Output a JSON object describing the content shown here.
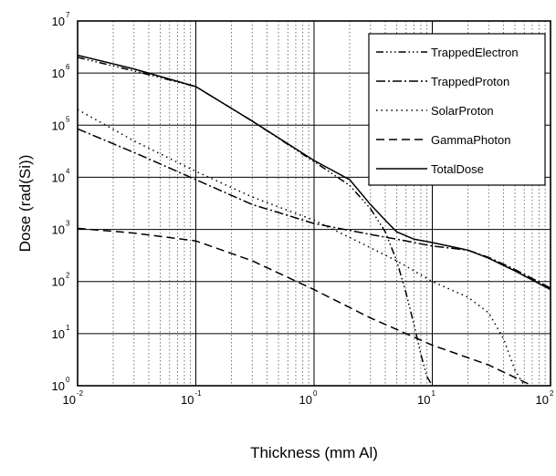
{
  "chart_data": {
    "type": "line",
    "xlabel": "Thickness (mm Al)",
    "ylabel": "Dose (rad(Si))",
    "xscale": "log",
    "yscale": "log",
    "xlim": [
      0.01,
      100
    ],
    "ylim": [
      1,
      10000000
    ],
    "grid": "major and minor",
    "legend_position": "top-right",
    "x_ticks": [
      {
        "base": "10",
        "exp": "-2",
        "value": 0.01
      },
      {
        "base": "10",
        "exp": "-1",
        "value": 0.1
      },
      {
        "base": "10",
        "exp": "0",
        "value": 1
      },
      {
        "base": "10",
        "exp": "1",
        "value": 10
      },
      {
        "base": "10",
        "exp": "2",
        "value": 100
      }
    ],
    "y_ticks": [
      {
        "base": "10",
        "exp": "0",
        "value": 1
      },
      {
        "base": "10",
        "exp": "1",
        "value": 10
      },
      {
        "base": "10",
        "exp": "2",
        "value": 100
      },
      {
        "base": "10",
        "exp": "3",
        "value": 1000
      },
      {
        "base": "10",
        "exp": "4",
        "value": 10000
      },
      {
        "base": "10",
        "exp": "5",
        "value": 100000
      },
      {
        "base": "10",
        "exp": "6",
        "value": 1000000
      },
      {
        "base": "10",
        "exp": "7",
        "value": 10000000
      }
    ],
    "series": [
      {
        "name": "TrappedElectron",
        "dash": "8 3 1.5 3 1.5 3 1.5 3",
        "points": [
          [
            0.01,
            2000000
          ],
          [
            0.03,
            1100000
          ],
          [
            0.1,
            550000
          ],
          [
            0.3,
            120000
          ],
          [
            1,
            20000
          ],
          [
            2,
            7000
          ],
          [
            3,
            2500
          ],
          [
            4,
            900
          ],
          [
            5,
            250
          ],
          [
            6,
            60
          ],
          [
            7,
            15
          ],
          [
            8,
            4
          ],
          [
            9,
            1.5
          ],
          [
            10,
            1
          ]
        ]
      },
      {
        "name": "TrappedProton",
        "dash": "10 3 2 3",
        "points": [
          [
            0.01,
            85000
          ],
          [
            0.03,
            30000
          ],
          [
            0.1,
            9000
          ],
          [
            0.3,
            3000
          ],
          [
            1,
            1300
          ],
          [
            3,
            800
          ],
          [
            5,
            650
          ],
          [
            10,
            480
          ],
          [
            20,
            400
          ],
          [
            30,
            290
          ],
          [
            50,
            170
          ],
          [
            100,
            75
          ]
        ]
      },
      {
        "name": "SolarProton",
        "dash": "1.5 4",
        "points": [
          [
            0.01,
            200000
          ],
          [
            0.03,
            50000
          ],
          [
            0.1,
            13000
          ],
          [
            0.3,
            4200
          ],
          [
            1,
            1500
          ],
          [
            2,
            700
          ],
          [
            5,
            250
          ],
          [
            10,
            100
          ],
          [
            20,
            50
          ],
          [
            30,
            25
          ],
          [
            40,
            8
          ],
          [
            50,
            2
          ],
          [
            60,
            1
          ]
        ]
      },
      {
        "name": "GammaPhoton",
        "dash": "9 5",
        "points": [
          [
            0.01,
            1050
          ],
          [
            0.03,
            850
          ],
          [
            0.1,
            600
          ],
          [
            0.3,
            250
          ],
          [
            1,
            70
          ],
          [
            3,
            20
          ],
          [
            10,
            6
          ],
          [
            30,
            2.5
          ],
          [
            70,
            1
          ]
        ]
      },
      {
        "name": "TotalDose",
        "dash": "",
        "points": [
          [
            0.01,
            2200000
          ],
          [
            0.03,
            1200000
          ],
          [
            0.1,
            550000
          ],
          [
            0.3,
            120000
          ],
          [
            1,
            21000
          ],
          [
            2,
            9000
          ],
          [
            3,
            3000
          ],
          [
            4,
            1500
          ],
          [
            5,
            900
          ],
          [
            7,
            650
          ],
          [
            10,
            560
          ],
          [
            20,
            400
          ],
          [
            30,
            280
          ],
          [
            50,
            160
          ],
          [
            100,
            70
          ]
        ]
      }
    ]
  }
}
